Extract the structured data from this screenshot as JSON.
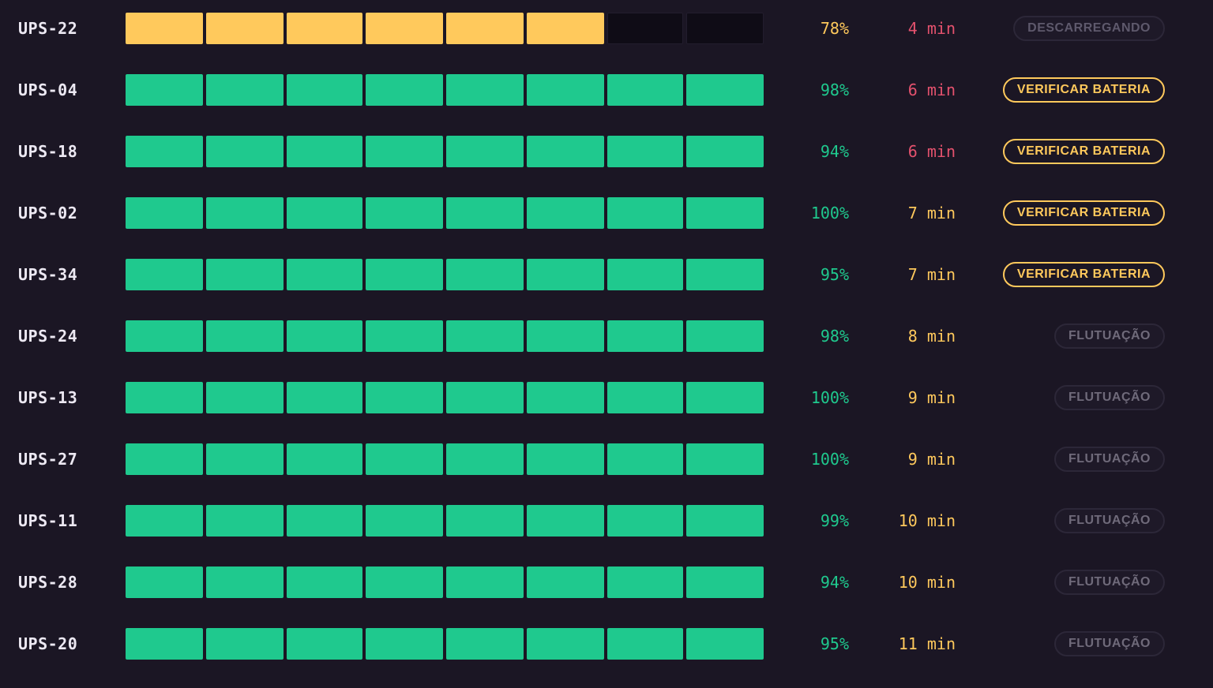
{
  "colors": {
    "ok": "#1fc98e",
    "discharging": "#ffc95c",
    "empty": "#0f0c16",
    "runtime_low": "#e5526e",
    "runtime_mid": "#ffc95c",
    "badge_warn": "#ffc95c",
    "badge_muted": "#6f6a7a"
  },
  "units": [
    {
      "name": "UPS-22",
      "charge_pct": 78,
      "segments_filled": 6,
      "segments_total": 8,
      "charge": "78%",
      "runtime": "4 min",
      "runtime_level": "low",
      "status": "DESCARREGANDO",
      "status_kind": "discharging"
    },
    {
      "name": "UPS-04",
      "charge_pct": 98,
      "segments_filled": 8,
      "segments_total": 8,
      "charge": "98%",
      "runtime": "6 min",
      "runtime_level": "low",
      "status": "VERIFICAR BATERIA",
      "status_kind": "warn"
    },
    {
      "name": "UPS-18",
      "charge_pct": 94,
      "segments_filled": 8,
      "segments_total": 8,
      "charge": "94%",
      "runtime": "6 min",
      "runtime_level": "low",
      "status": "VERIFICAR BATERIA",
      "status_kind": "warn"
    },
    {
      "name": "UPS-02",
      "charge_pct": 100,
      "segments_filled": 8,
      "segments_total": 8,
      "charge": "100%",
      "runtime": "7 min",
      "runtime_level": "mid",
      "status": "VERIFICAR BATERIA",
      "status_kind": "warn"
    },
    {
      "name": "UPS-34",
      "charge_pct": 95,
      "segments_filled": 8,
      "segments_total": 8,
      "charge": "95%",
      "runtime": "7 min",
      "runtime_level": "mid",
      "status": "VERIFICAR BATERIA",
      "status_kind": "warn"
    },
    {
      "name": "UPS-24",
      "charge_pct": 98,
      "segments_filled": 8,
      "segments_total": 8,
      "charge": "98%",
      "runtime": "8 min",
      "runtime_level": "mid",
      "status": "FLUTUAÇÃO",
      "status_kind": "muted"
    },
    {
      "name": "UPS-13",
      "charge_pct": 100,
      "segments_filled": 8,
      "segments_total": 8,
      "charge": "100%",
      "runtime": "9 min",
      "runtime_level": "mid",
      "status": "FLUTUAÇÃO",
      "status_kind": "muted"
    },
    {
      "name": "UPS-27",
      "charge_pct": 100,
      "segments_filled": 8,
      "segments_total": 8,
      "charge": "100%",
      "runtime": "9 min",
      "runtime_level": "mid",
      "status": "FLUTUAÇÃO",
      "status_kind": "muted"
    },
    {
      "name": "UPS-11",
      "charge_pct": 99,
      "segments_filled": 8,
      "segments_total": 8,
      "charge": "99%",
      "runtime": "10 min",
      "runtime_level": "mid",
      "status": "FLUTUAÇÃO",
      "status_kind": "muted"
    },
    {
      "name": "UPS-28",
      "charge_pct": 94,
      "segments_filled": 8,
      "segments_total": 8,
      "charge": "94%",
      "runtime": "10 min",
      "runtime_level": "mid",
      "status": "FLUTUAÇÃO",
      "status_kind": "muted"
    },
    {
      "name": "UPS-20",
      "charge_pct": 95,
      "segments_filled": 8,
      "segments_total": 8,
      "charge": "95%",
      "runtime": "11 min",
      "runtime_level": "mid",
      "status": "FLUTUAÇÃO",
      "status_kind": "muted"
    }
  ]
}
